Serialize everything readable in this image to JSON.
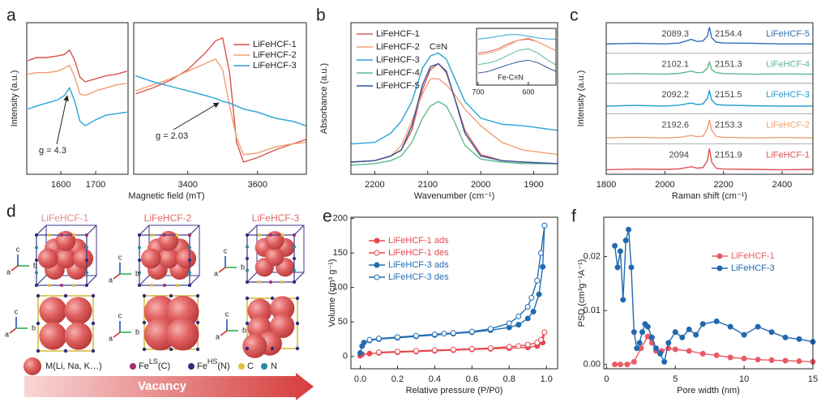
{
  "chart_data": [
    {
      "type": "line",
      "panel": "a",
      "xlabel": "Magnetic field (mT)",
      "ylabel": "Intensity (a.u.)",
      "xlim": [
        1502,
        3740
      ],
      "xbreak": [
        1793,
        3245
      ],
      "xticks": [
        1600,
        1700,
        3400,
        3600
      ],
      "ylim": [
        0,
        10
      ],
      "x": [
        1505,
        1530,
        1560,
        1590,
        1610,
        1625,
        1640,
        1655,
        1670,
        1700,
        1730,
        1760,
        1790,
        3250,
        3300,
        3350,
        3400,
        3450,
        3480,
        3500,
        3520,
        3540,
        3560,
        3600,
        3650,
        3700,
        3740
      ],
      "series": [
        {
          "name": "LiFeHCF-1",
          "color": "#d9534f",
          "values": [
            7.5,
            7.7,
            7.7,
            7.8,
            7.9,
            8.2,
            7.5,
            6.4,
            6.1,
            6.3,
            6.5,
            6.6,
            6.8,
            5.3,
            5.7,
            6.2,
            6.9,
            8.0,
            8.8,
            9.0,
            6.7,
            2.1,
            0.8,
            1.1,
            1.6,
            2.0,
            2.3
          ]
        },
        {
          "name": "LiFeHCF-2",
          "color": "#f0a070",
          "values": [
            6.6,
            6.7,
            6.7,
            6.8,
            7.0,
            7.2,
            6.4,
            5.3,
            5.2,
            5.5,
            5.7,
            5.9,
            6.0,
            5.5,
            5.9,
            6.3,
            6.8,
            7.3,
            7.6,
            6.9,
            4.5,
            2.4,
            1.3,
            1.4,
            1.8,
            2.0,
            2.1
          ]
        },
        {
          "name": "LiFeHCF-3",
          "color": "#29a3d8",
          "values": [
            4.3,
            4.5,
            4.7,
            4.9,
            5.2,
            5.7,
            4.8,
            3.5,
            3.2,
            3.6,
            3.9,
            4.0,
            4.1,
            6.5,
            6.1,
            5.8,
            5.5,
            5.2,
            5.0,
            4.8,
            4.7,
            4.5,
            4.3,
            4.1,
            3.7,
            3.5,
            3.2
          ]
        }
      ],
      "annotations": [
        "g = 4.3",
        "g = 2.03"
      ]
    },
    {
      "type": "line",
      "panel": "b",
      "xlabel": "Wavenumber (cm⁻¹)",
      "ylabel": "Absorbance (a.u.)",
      "xlim": [
        2245,
        1855
      ],
      "xticks": [
        2200,
        2100,
        2000,
        1900
      ],
      "ylim": [
        0,
        10
      ],
      "x": [
        2245,
        2200,
        2170,
        2150,
        2130,
        2110,
        2095,
        2080,
        2065,
        2050,
        2030,
        2000,
        1960,
        1920,
        1855
      ],
      "series": [
        {
          "name": "LiFeHCF-1",
          "color": "#e05a5a",
          "values": [
            0.8,
            0.9,
            1.2,
            1.6,
            2.9,
            5.6,
            6.9,
            7.3,
            6.7,
            5.1,
            2.9,
            1.3,
            0.9,
            0.8,
            0.7
          ]
        },
        {
          "name": "LiFeHCF-2",
          "color": "#f2a07a",
          "values": [
            0.8,
            0.9,
            1.2,
            1.9,
            3.5,
            5.3,
            6.3,
            6.3,
            5.9,
            5.3,
            4.3,
            3.2,
            2.1,
            1.6,
            1.3
          ]
        },
        {
          "name": "LiFeHCF-3",
          "color": "#2aa3d6",
          "values": [
            2.0,
            2.1,
            2.7,
            3.5,
            4.8,
            7.0,
            7.8,
            8.0,
            7.6,
            6.4,
            4.8,
            3.7,
            3.3,
            3.2,
            2.9
          ]
        },
        {
          "name": "LiFeHCF-4",
          "color": "#5dbb8c",
          "values": [
            0.6,
            0.7,
            0.9,
            1.2,
            2.1,
            3.7,
            4.5,
            4.8,
            4.5,
            3.5,
            1.9,
            1.0,
            0.8,
            0.7,
            0.7
          ]
        },
        {
          "name": "LiFeHCF-5",
          "color": "#2f5597",
          "values": [
            0.8,
            0.9,
            1.2,
            1.6,
            3.2,
            5.9,
            7.1,
            7.3,
            6.8,
            5.1,
            2.7,
            1.2,
            0.9,
            0.8,
            0.7
          ]
        }
      ],
      "annotations": [
        "C≡N"
      ]
    },
    {
      "type": "line",
      "xlim": [
        703,
        545
      ],
      "xticks": [
        700,
        600
      ],
      "ylim": [
        0,
        10
      ],
      "x": [
        700,
        680,
        660,
        640,
        620,
        600,
        580,
        560,
        545
      ],
      "series": [
        {
          "color": "#e05a5a",
          "values": [
            5.6,
            5.9,
            6.4,
            7.3,
            7.9,
            8.1,
            7.6,
            6.7,
            6.1
          ]
        },
        {
          "color": "#f2a07a",
          "values": [
            5.3,
            5.6,
            6.1,
            7.0,
            7.9,
            8.3,
            7.6,
            6.7,
            6.1
          ]
        },
        {
          "color": "#2aa3d6",
          "values": [
            8.1,
            8.3,
            8.6,
            8.9,
            8.9,
            8.6,
            8.3,
            8.1,
            8.1
          ]
        },
        {
          "color": "#5dbb8c",
          "values": [
            3.6,
            3.9,
            4.4,
            5.3,
            6.1,
            6.4,
            5.6,
            4.3,
            3.6
          ]
        },
        {
          "color": "#2f5597",
          "values": [
            2.1,
            2.4,
            3.0,
            3.6,
            4.1,
            4.4,
            3.9,
            3.0,
            2.4
          ]
        }
      ],
      "annotations": [
        "Fe-C≡N"
      ]
    },
    {
      "type": "line",
      "panel": "c",
      "xlabel": "Raman shift (cm⁻¹)",
      "ylabel": "Intensity (a.u.)",
      "xlim": [
        1800,
        2505
      ],
      "xticks": [
        1800,
        2000,
        2200,
        2400
      ],
      "ylim": [
        0,
        5
      ],
      "x": [
        1800,
        1900,
        2000,
        2050,
        2090,
        2110,
        2130,
        2145,
        2152,
        2160,
        2175,
        2200,
        2300,
        2400,
        2505
      ],
      "series": [
        {
          "name": "LiFeHCF-1",
          "color": "#e05050",
          "peaks": [
            2094,
            2151.9
          ],
          "values": [
            0.15,
            0.17,
            0.16,
            0.18,
            0.25,
            0.2,
            0.22,
            0.45,
            0.85,
            0.4,
            0.2,
            0.17,
            0.16,
            0.15,
            0.16
          ]
        },
        {
          "name": "LiFeHCF-2",
          "color": "#f0a070",
          "peaks": [
            2192.6,
            2153.3
          ],
          "values": [
            0.2,
            0.22,
            0.2,
            0.22,
            0.28,
            0.24,
            0.26,
            0.5,
            0.8,
            0.45,
            0.25,
            0.22,
            0.2,
            0.21,
            0.2
          ]
        },
        {
          "name": "LiFeHCF-3",
          "color": "#1f9bd1",
          "peaks": [
            2092.2,
            2151.5
          ],
          "values": [
            0.25,
            0.27,
            0.25,
            0.28,
            0.35,
            0.3,
            0.32,
            0.5,
            0.75,
            0.45,
            0.3,
            0.28,
            0.26,
            0.25,
            0.25
          ]
        },
        {
          "name": "LiFeHCF-4",
          "color": "#5cb88a",
          "peaks": [
            2102.1,
            2151.3
          ],
          "values": [
            0.3,
            0.32,
            0.3,
            0.33,
            0.4,
            0.35,
            0.36,
            0.5,
            0.7,
            0.45,
            0.35,
            0.32,
            0.3,
            0.31,
            0.3
          ]
        },
        {
          "name": "LiFeHCF-5",
          "color": "#2f6db5",
          "peaks": [
            2089.3,
            2154.4
          ],
          "values": [
            0.3,
            0.32,
            0.3,
            0.33,
            0.45,
            0.38,
            0.4,
            0.55,
            0.85,
            0.5,
            0.36,
            0.33,
            0.32,
            0.3,
            0.3
          ]
        }
      ]
    },
    {
      "type": "line",
      "panel": "e",
      "xlabel": "Relative pressure  (P/P0)",
      "ylabel": "Volume (cm³ g⁻¹)",
      "xlim": [
        -0.05,
        1.06
      ],
      "xticks": [
        {
          "value": 0,
          "label": "0.0"
        },
        0.2,
        0.4,
        0.6,
        0.8,
        {
          "value": 1,
          "label": "1.0"
        }
      ],
      "ylim": [
        -18,
        202
      ],
      "yticks": [
        0,
        50,
        100,
        150,
        200
      ],
      "series": [
        {
          "name": "LiFeHCF-1 ads",
          "color": "#e8474f",
          "marker": "filled",
          "x": [
            0.0,
            0.01,
            0.05,
            0.1,
            0.2,
            0.3,
            0.4,
            0.5,
            0.6,
            0.7,
            0.8,
            0.9,
            0.95,
            0.98,
            0.99
          ],
          "values": [
            1,
            3,
            4,
            5,
            6,
            7,
            8,
            9,
            10,
            11,
            12,
            13,
            15,
            20,
            35
          ]
        },
        {
          "name": "LiFeHCF-1 des",
          "color": "#e8474f",
          "marker": "open",
          "x": [
            0.99,
            0.97,
            0.95,
            0.9,
            0.85,
            0.8,
            0.7,
            0.6,
            0.5,
            0.4,
            0.3,
            0.2,
            0.1
          ],
          "values": [
            35,
            24,
            20,
            17,
            15,
            14,
            12,
            11,
            10,
            9,
            8,
            7,
            6
          ]
        },
        {
          "name": "LiFeHCF-3 ads",
          "color": "#1f6db3",
          "marker": "filled",
          "x": [
            0.0,
            0.01,
            0.02,
            0.05,
            0.1,
            0.2,
            0.3,
            0.4,
            0.5,
            0.6,
            0.7,
            0.8,
            0.85,
            0.9,
            0.93,
            0.96,
            0.98,
            0.99
          ],
          "values": [
            5,
            15,
            20,
            23,
            25,
            27,
            29,
            31,
            33,
            35,
            38,
            42,
            46,
            55,
            65,
            90,
            130,
            190
          ]
        },
        {
          "name": "LiFeHCF-3 des",
          "color": "#1f6db3",
          "marker": "open",
          "x": [
            0.99,
            0.97,
            0.95,
            0.92,
            0.9,
            0.85,
            0.8,
            0.7,
            0.6,
            0.5,
            0.45,
            0.4,
            0.3,
            0.2,
            0.1,
            0.05
          ],
          "values": [
            190,
            150,
            110,
            85,
            72,
            58,
            48,
            40,
            36,
            34,
            33,
            32,
            30,
            28,
            26,
            24
          ]
        }
      ]
    },
    {
      "type": "line",
      "panel": "f",
      "xlabel": "Pore width (nm)",
      "ylabel": "PSD (cm³g⁻¹A⁻¹)",
      "xlim": [
        -0.2,
        15
      ],
      "xticks": [
        0,
        5,
        10,
        15
      ],
      "ylim": [
        -0.0008,
        0.0273
      ],
      "yticks": [
        {
          "value": 0,
          "label": "0.00"
        },
        0.01,
        0.02
      ],
      "series": [
        {
          "name": "LiFeHCF-1",
          "color": "#ea5a66",
          "marker": "filled",
          "x": [
            0.6,
            1,
            1.5,
            2,
            2.5,
            3,
            3.3,
            3.6,
            4,
            4.5,
            5,
            6,
            7,
            8,
            9,
            10,
            11,
            12,
            13,
            14,
            15
          ],
          "values": [
            0.0,
            0.0,
            0.0,
            0.0005,
            0.003,
            0.0052,
            0.004,
            0.0025,
            0.0025,
            0.003,
            0.0028,
            0.0025,
            0.002,
            0.0017,
            0.0013,
            0.0011,
            0.0009,
            0.0008,
            0.0007,
            0.0006,
            0.0005
          ]
        },
        {
          "name": "LiFeHCF-3",
          "color": "#2268b0",
          "marker": "filled",
          "x": [
            0.6,
            0.8,
            1.0,
            1.2,
            1.4,
            1.6,
            1.8,
            2.0,
            2.2,
            2.4,
            2.6,
            2.8,
            3.0,
            3.3,
            3.6,
            3.9,
            4.2,
            4.5,
            5,
            5.5,
            6,
            6.5,
            7,
            8,
            9,
            10,
            11,
            12,
            13,
            14,
            15
          ],
          "values": [
            0.022,
            0.018,
            0.021,
            0.012,
            0.023,
            0.025,
            0.018,
            0.006,
            0.003,
            0.004,
            0.006,
            0.0075,
            0.007,
            0.005,
            0.003,
            0.002,
            0.0005,
            0.004,
            0.006,
            0.005,
            0.0065,
            0.0055,
            0.0075,
            0.008,
            0.007,
            0.0055,
            0.007,
            0.006,
            0.005,
            0.0047,
            0.0042
          ]
        }
      ]
    }
  ],
  "diagram": {
    "panel": "d",
    "titles": [
      "LiFeHCF-1",
      "LiFeHCF-2",
      "LiFeHCF-3"
    ],
    "axes": [
      "a",
      "b",
      "c"
    ],
    "legend": {
      "metal": "M(Li, Na, K…)",
      "fe_ls": [
        "Fe",
        "LS",
        "(C)"
      ],
      "fe_hs": [
        "Fe",
        "HS",
        "(N)"
      ],
      "carbon": "C",
      "nitrogen": "N"
    },
    "arrow": "Vacancy"
  }
}
